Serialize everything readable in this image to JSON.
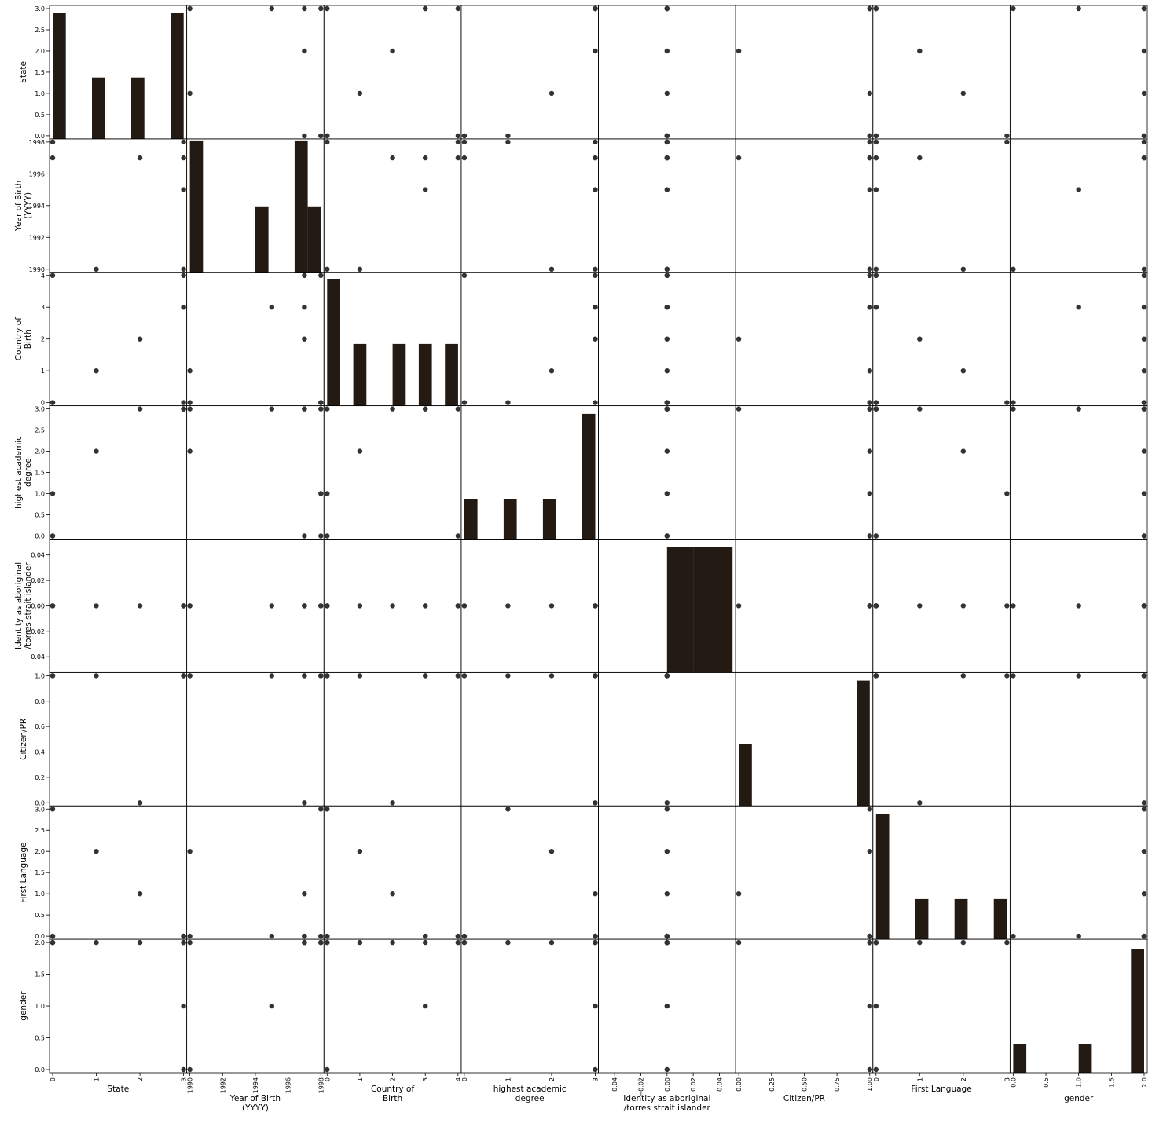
{
  "chart_data": {
    "type": "scatter",
    "kind": "scatter-matrix",
    "diagonal": "histogram",
    "grid": false,
    "colors": {
      "bar": "#231a14",
      "point": "#333333",
      "axis": "#000000"
    },
    "variables": [
      {
        "key": "state",
        "label": [
          "State"
        ],
        "range": [
          0,
          3
        ],
        "xticks": [
          "0",
          "1",
          "2",
          "3"
        ],
        "xtickvals": [
          0,
          1,
          2,
          3
        ],
        "yticks": [
          "0.0",
          "0.5",
          "1.0",
          "1.5",
          "2.0",
          "2.5",
          "3.0"
        ],
        "ytickvals": [
          0,
          0.5,
          1,
          1.5,
          2,
          2.5,
          3
        ]
      },
      {
        "key": "yob",
        "label": [
          "Year of Birth",
          "(YYYY)"
        ],
        "range": [
          1990,
          1998
        ],
        "xticks": [
          "1990",
          "1992",
          "1994",
          "1996",
          "1998"
        ],
        "xtickvals": [
          1990,
          1992,
          1994,
          1996,
          1998
        ],
        "yticks": [
          "1990",
          "1992",
          "1994",
          "1996",
          "1998"
        ],
        "ytickvals": [
          1990,
          1992,
          1994,
          1996,
          1998
        ]
      },
      {
        "key": "cob",
        "label": [
          "Country of",
          "Birth"
        ],
        "range": [
          0,
          4
        ],
        "xticks": [
          "0",
          "1",
          "2",
          "3",
          "4"
        ],
        "xtickvals": [
          0,
          1,
          2,
          3,
          4
        ],
        "yticks": [
          "0",
          "1",
          "2",
          "3",
          "4"
        ],
        "ytickvals": [
          0,
          1,
          2,
          3,
          4
        ]
      },
      {
        "key": "degree",
        "label": [
          "highest academic",
          "degree"
        ],
        "range": [
          0,
          3
        ],
        "xticks": [
          "0",
          "1",
          "2",
          "3"
        ],
        "xtickvals": [
          0,
          1,
          2,
          3
        ],
        "yticks": [
          "0.0",
          "0.5",
          "1.0",
          "1.5",
          "2.0",
          "2.5",
          "3.0"
        ],
        "ytickvals": [
          0,
          0.5,
          1,
          1.5,
          2,
          2.5,
          3
        ]
      },
      {
        "key": "aboriginal",
        "label": [
          "Identity as aboriginal",
          "/torres strait islander"
        ],
        "range": [
          -0.05,
          0.05
        ],
        "xticks": [
          "−0.04",
          "−0.02",
          "0.00",
          "0.02",
          "0.04"
        ],
        "xtickvals": [
          -0.04,
          -0.02,
          0,
          0.02,
          0.04
        ],
        "yticks": [
          "−0.04",
          "−0.02",
          "0.00",
          "0.02",
          "0.04"
        ],
        "ytickvals": [
          -0.04,
          -0.02,
          0,
          0.02,
          0.04
        ]
      },
      {
        "key": "citizen",
        "label": [
          "Citizen/PR"
        ],
        "range": [
          0,
          1
        ],
        "xticks": [
          "0.00",
          "0.25",
          "0.50",
          "0.75",
          "1.00"
        ],
        "xtickvals": [
          0,
          0.25,
          0.5,
          0.75,
          1
        ],
        "yticks": [
          "0.0",
          "0.2",
          "0.4",
          "0.6",
          "0.8",
          "1.0"
        ],
        "ytickvals": [
          0,
          0.2,
          0.4,
          0.6,
          0.8,
          1
        ]
      },
      {
        "key": "language",
        "label": [
          "First Language"
        ],
        "range": [
          0,
          3
        ],
        "xticks": [
          "0",
          "1",
          "2",
          "3"
        ],
        "xtickvals": [
          0,
          1,
          2,
          3
        ],
        "yticks": [
          "0.0",
          "0.5",
          "1.0",
          "1.5",
          "2.0",
          "2.5",
          "3.0"
        ],
        "ytickvals": [
          0,
          0.5,
          1,
          1.5,
          2,
          2.5,
          3
        ]
      },
      {
        "key": "gender",
        "label": [
          "gender"
        ],
        "range": [
          0,
          2
        ],
        "xticks": [
          "0.0",
          "0.5",
          "1.0",
          "1.5",
          "2.0"
        ],
        "xtickvals": [
          0,
          0.5,
          1,
          1.5,
          2
        ],
        "yticks": [
          "0.0",
          "0.5",
          "1.0",
          "1.5",
          "2.0"
        ],
        "ytickvals": [
          0,
          0.5,
          1,
          1.5,
          2
        ]
      }
    ],
    "records": [
      [
        0,
        1998,
        0,
        1,
        0,
        1,
        3,
        2
      ],
      [
        0,
        1997,
        4,
        0,
        0,
        1,
        0,
        2
      ],
      [
        1,
        1990,
        1,
        2,
        0,
        1,
        2,
        2
      ],
      [
        2,
        1997,
        2,
        3,
        0,
        0,
        1,
        2
      ],
      [
        3,
        1995,
        3,
        3,
        0,
        1,
        0,
        1
      ],
      [
        3,
        1990,
        0,
        3,
        0,
        1,
        0,
        0
      ],
      [
        0,
        1998,
        0,
        0,
        0,
        1,
        0,
        2
      ],
      [
        3,
        1998,
        4,
        3,
        0,
        1,
        0,
        2
      ],
      [
        3,
        1997,
        3,
        3,
        0,
        1,
        0,
        2
      ]
    ],
    "histograms": [
      {
        "bins": [
          0,
          0.3,
          0.6,
          0.9,
          1.2,
          1.5,
          1.8,
          2.1,
          2.4,
          2.7,
          3.0
        ],
        "counts": [
          2.92,
          0,
          0,
          1.42,
          0,
          0,
          1.42,
          0,
          0,
          2.92
        ],
        "ylim": [
          0,
          3.05
        ]
      },
      {
        "bins": [
          1990,
          1990.8,
          1991.6,
          1992.4,
          1993.2,
          1994.0,
          1994.8,
          1995.6,
          1996.4,
          1997.2,
          1998.0
        ],
        "counts": [
          1,
          0,
          0,
          0,
          0,
          0.5,
          0,
          0,
          1,
          0.5
        ],
        "ylim": [
          0,
          1
        ]
      },
      {
        "bins": [
          0,
          0.4,
          0.8,
          1.2,
          1.6,
          2.0,
          2.4,
          2.8,
          3.2,
          3.6,
          4.0
        ],
        "counts": [
          3.9,
          0,
          1.9,
          0,
          0,
          1.9,
          0,
          1.9,
          0,
          1.9
        ],
        "ylim": [
          0,
          4.05
        ]
      },
      {
        "bins": [
          0,
          0.3,
          0.6,
          0.9,
          1.2,
          1.5,
          1.8,
          2.1,
          2.4,
          2.7,
          3.0
        ],
        "counts": [
          0.93,
          0,
          0,
          0.93,
          0,
          0,
          0.93,
          0,
          0,
          2.9
        ],
        "ylim": [
          0,
          3.05
        ]
      },
      {
        "bins": [
          -0.05,
          -0.04,
          -0.03,
          -0.02,
          -0.01,
          0.0,
          0.01,
          0.02,
          0.03,
          0.04,
          0.05
        ],
        "counts": [
          0,
          0,
          0,
          0,
          0,
          1,
          1,
          1,
          1,
          1
        ],
        "ylim": [
          0,
          1.05
        ]
      },
      {
        "bins": [
          0,
          0.1,
          0.2,
          0.3,
          0.4,
          0.5,
          0.6,
          0.7,
          0.8,
          0.9,
          1.0
        ],
        "counts": [
          0.48,
          0,
          0,
          0,
          0,
          0,
          0,
          0,
          0,
          0.97
        ],
        "ylim": [
          0,
          1.02
        ]
      },
      {
        "bins": [
          0,
          0.3,
          0.6,
          0.9,
          1.2,
          1.5,
          1.8,
          2.1,
          2.4,
          2.7,
          3.0
        ],
        "counts": [
          2.9,
          0,
          0,
          0.93,
          0,
          0,
          0.93,
          0,
          0,
          0.93
        ],
        "ylim": [
          0,
          3.05
        ]
      },
      {
        "bins": [
          0,
          0.2,
          0.4,
          0.6,
          0.8,
          1.0,
          1.2,
          1.4,
          1.6,
          1.8,
          2.0
        ],
        "counts": [
          0.45,
          0,
          0,
          0,
          0,
          0.45,
          0,
          0,
          0,
          1.93
        ],
        "ylim": [
          0,
          2.05
        ]
      }
    ]
  }
}
